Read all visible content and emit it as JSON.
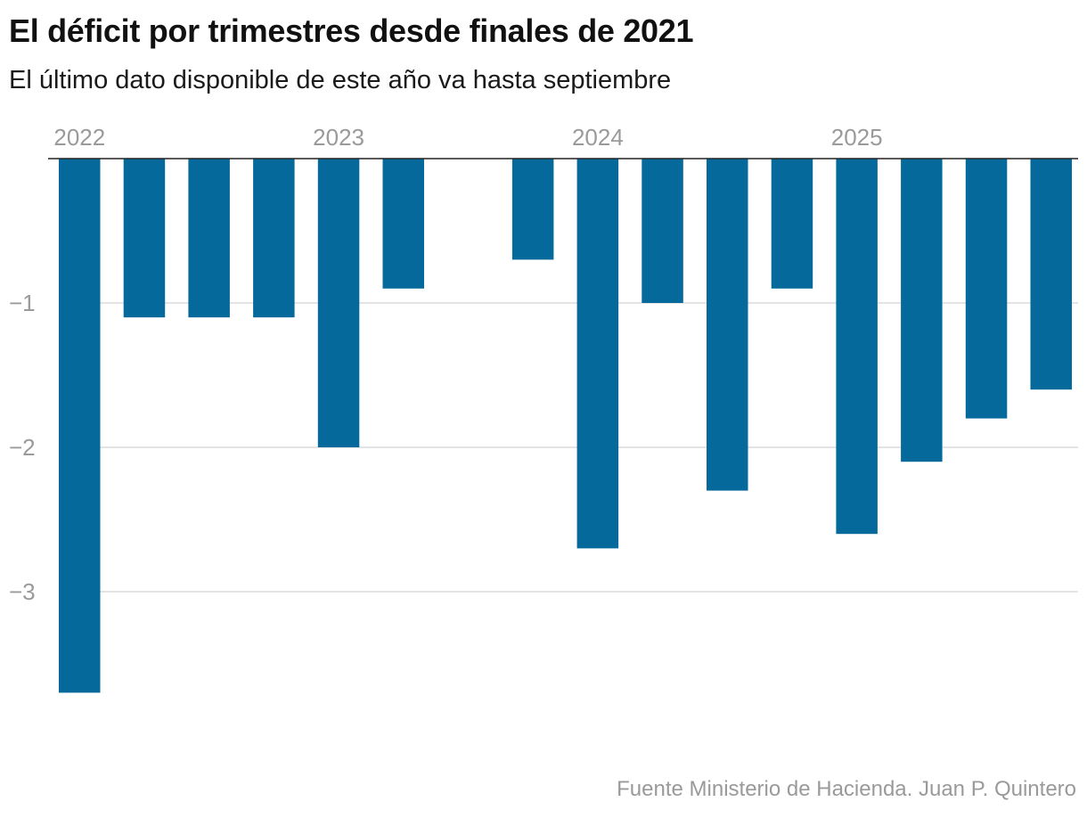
{
  "header": {
    "title": "El déficit por trimestres desde finales de 2021",
    "subtitle": "El último dato disponible de este año va hasta septiembre"
  },
  "footer": {
    "source": "Fuente Ministerio de Hacienda. Juan P. Quintero"
  },
  "colors": {
    "bar": "#06699c",
    "grid": "#dcdcdc",
    "axis": "#222222",
    "label": "#9a9a9a"
  },
  "chart_data": {
    "type": "bar",
    "title": "El déficit por trimestres desde finales de 2021",
    "subtitle": "El último dato disponible de este año va hasta septiembre",
    "xlabel": "",
    "ylabel": "",
    "categories": [
      "",
      "",
      "",
      "",
      "",
      "",
      "",
      "",
      "",
      "",
      "",
      "",
      "",
      "",
      "",
      ""
    ],
    "values": [
      -3.7,
      -1.1,
      -1.1,
      -1.1,
      -2.0,
      -0.9,
      null,
      -0.7,
      -2.7,
      -1.0,
      -2.3,
      -0.9,
      -2.6,
      -2.1,
      -1.8,
      -1.6
    ],
    "year_labels": [
      {
        "label": "2022",
        "index": 0
      },
      {
        "label": "2023",
        "index": 4
      },
      {
        "label": "2024",
        "index": 8
      },
      {
        "label": "2025",
        "index": 12
      }
    ],
    "y_ticks": [
      {
        "value": -1,
        "label": "−1"
      },
      {
        "value": -2,
        "label": "−2"
      },
      {
        "value": -3,
        "label": "−3"
      }
    ],
    "ylim": [
      -3.7,
      0
    ],
    "grid": true,
    "legend": "none"
  }
}
